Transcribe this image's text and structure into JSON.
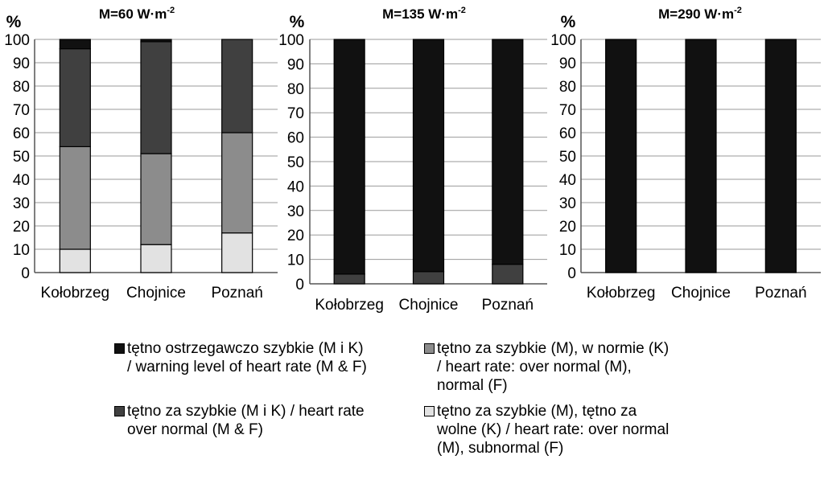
{
  "chart_data": [
    {
      "type": "bar",
      "stacked": true,
      "title": "M=60 W·m",
      "title_sup": "-2",
      "ylabel": "%",
      "ylim": [
        0,
        100
      ],
      "yticks": [
        "0",
        "10",
        "20",
        "30",
        "40",
        "50",
        "60",
        "70",
        "80",
        "90",
        "100"
      ],
      "categories": [
        "Kołobrzeg",
        "Chojnice",
        "Poznań"
      ],
      "series": [
        {
          "values": [
            10,
            12,
            17
          ]
        },
        {
          "values": [
            44,
            39,
            43
          ]
        },
        {
          "values": [
            42,
            48,
            40
          ]
        },
        {
          "values": [
            4,
            1,
            0
          ]
        }
      ]
    },
    {
      "type": "bar",
      "stacked": true,
      "title": "M=135 W·m",
      "title_sup": "-2",
      "ylabel": "%",
      "ylim": [
        0,
        100
      ],
      "yticks": [
        "0",
        "10",
        "20",
        "30",
        "40",
        "50",
        "60",
        "70",
        "80",
        "90",
        "100"
      ],
      "categories": [
        "Kołobrzeg",
        "Chojnice",
        "Poznań"
      ],
      "series": [
        {
          "values": [
            0,
            0,
            0
          ]
        },
        {
          "values": [
            0,
            0,
            0
          ]
        },
        {
          "values": [
            4,
            5,
            8
          ]
        },
        {
          "values": [
            96,
            95,
            92
          ]
        }
      ]
    },
    {
      "type": "bar",
      "stacked": true,
      "title": "M=290 W·m",
      "title_sup": "-2",
      "ylabel": "%",
      "ylim": [
        0,
        100
      ],
      "yticks": [
        "0",
        "10",
        "20",
        "30",
        "40",
        "50",
        "60",
        "70",
        "80",
        "90",
        "100"
      ],
      "categories": [
        "Kołobrzeg",
        "Chojnice",
        "Poznań"
      ],
      "series": [
        {
          "values": [
            0,
            0,
            0
          ]
        },
        {
          "values": [
            0,
            0,
            0
          ]
        },
        {
          "values": [
            0,
            0,
            0
          ]
        },
        {
          "values": [
            100,
            100,
            100
          ]
        }
      ]
    }
  ],
  "colors": {
    "series": [
      "#e2e2e2",
      "#8c8c8c",
      "#404040",
      "#111111"
    ],
    "grid": "#9a9a9a",
    "axis": "#555555"
  },
  "legend": {
    "items": [
      {
        "text": "tętno ostrzegawczo szybkie (M i K)\n/ warning level of heart rate (M & F)"
      },
      {
        "text": "tętno za szybkie (M i K) / heart rate\nover normal (M & F)"
      },
      {
        "text": "tętno za szybkie (M), w normie (K)\n/ heart rate: over normal (M),\nnormal (F)"
      },
      {
        "text": "tętno za szybkie (M), tętno za\nwolne (K) / heart rate: over normal\n(M), subnormal (F)"
      }
    ]
  }
}
